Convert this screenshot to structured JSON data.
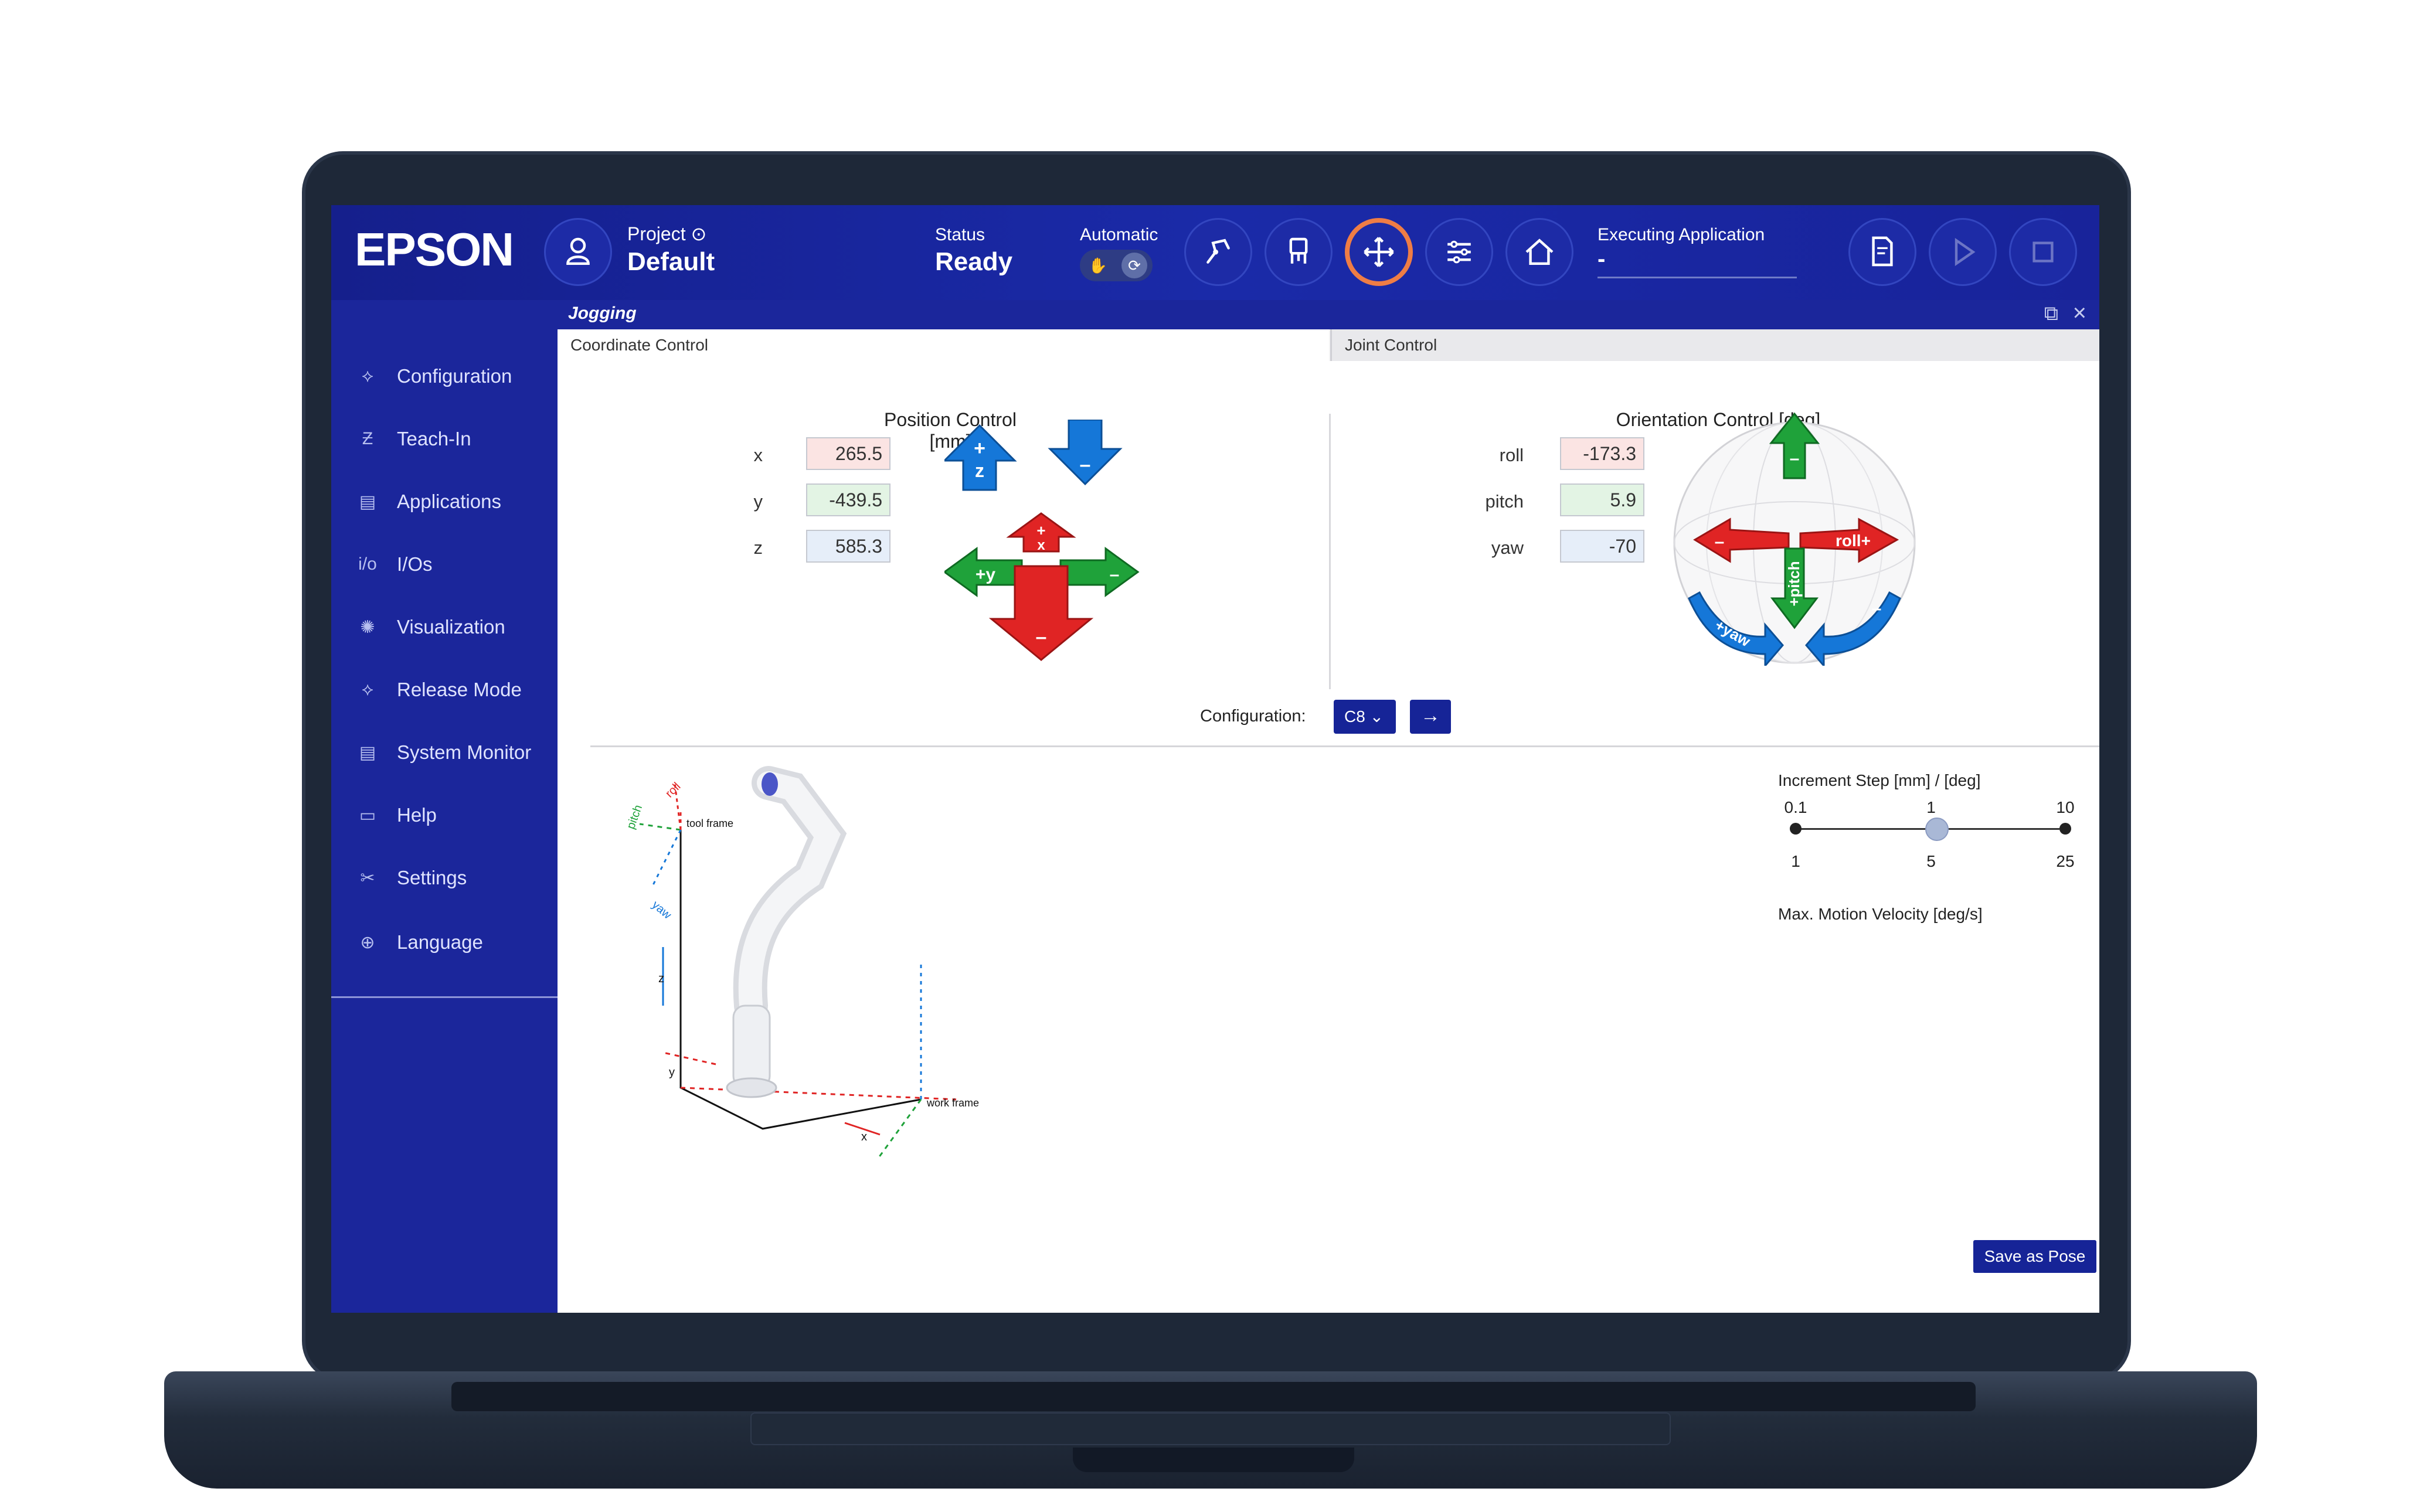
{
  "brand": "EPSON",
  "project": {
    "label": "Project",
    "name": "Default"
  },
  "status": {
    "label": "Status",
    "value": "Ready"
  },
  "automatic": {
    "label": "Automatic"
  },
  "executing": {
    "label": "Executing Application",
    "value": "-"
  },
  "sidebar": {
    "items": [
      {
        "label": "Configuration",
        "icon": "configuration-icon"
      },
      {
        "label": "Teach-In",
        "icon": "teach-in-icon"
      },
      {
        "label": "Applications",
        "icon": "applications-icon"
      },
      {
        "label": "I/Os",
        "icon": "io-icon"
      },
      {
        "label": "Visualization",
        "icon": "visualization-icon"
      },
      {
        "label": "Release Mode",
        "icon": "release-mode-icon"
      },
      {
        "label": "System Monitor",
        "icon": "system-monitor-icon"
      },
      {
        "label": "Help",
        "icon": "help-icon"
      },
      {
        "label": "Settings",
        "icon": "settings-icon"
      }
    ],
    "language": "Language"
  },
  "panel": {
    "title": "Jogging"
  },
  "tabs": [
    "Coordinate Control",
    "Joint Control"
  ],
  "position": {
    "title": "Position Control [mm]",
    "x": {
      "label": "x",
      "value": "265.5"
    },
    "y": {
      "label": "y",
      "value": "-439.5"
    },
    "z": {
      "label": "z",
      "value": "585.3"
    }
  },
  "orientation": {
    "title": "Orientation Control [deg]",
    "roll": {
      "label": "roll",
      "value": "-173.3"
    },
    "pitch": {
      "label": "pitch",
      "value": "5.9"
    },
    "yaw": {
      "label": "yaw",
      "value": "-70"
    }
  },
  "arrow_labels": {
    "plus_z": "+",
    "z": "z",
    "minus": "–",
    "plus_x": "+",
    "x": "x",
    "plus_y": "+y",
    "roll_plus": "roll+",
    "pitch_plus": "+pitch",
    "yaw_plus": "+yaw",
    "plus": "+"
  },
  "configuration": {
    "label": "Configuration:",
    "value": "C8",
    "go": "→"
  },
  "increment": {
    "title": "Increment Step [mm] / [deg]",
    "top_ticks": [
      "0.1",
      "1",
      "10"
    ],
    "bottom_ticks": [
      "1",
      "5",
      "25"
    ],
    "selected_index": 1,
    "velocity_label": "Max. Motion Velocity [deg/s]"
  },
  "robot_labels": {
    "tool_frame": "tool frame",
    "work_frame": "work frame",
    "pitch": "pitch",
    "roll": "roll",
    "yaw": "yaw",
    "x": "x",
    "y": "y",
    "z": "z"
  },
  "save_pose": "Save as Pose",
  "colors": {
    "header": "#1a2aa8",
    "sidebar": "#1b269b",
    "red": "#e02424",
    "green": "#1fa23a",
    "blue": "#1577d8",
    "accent": "#ef7d45"
  }
}
